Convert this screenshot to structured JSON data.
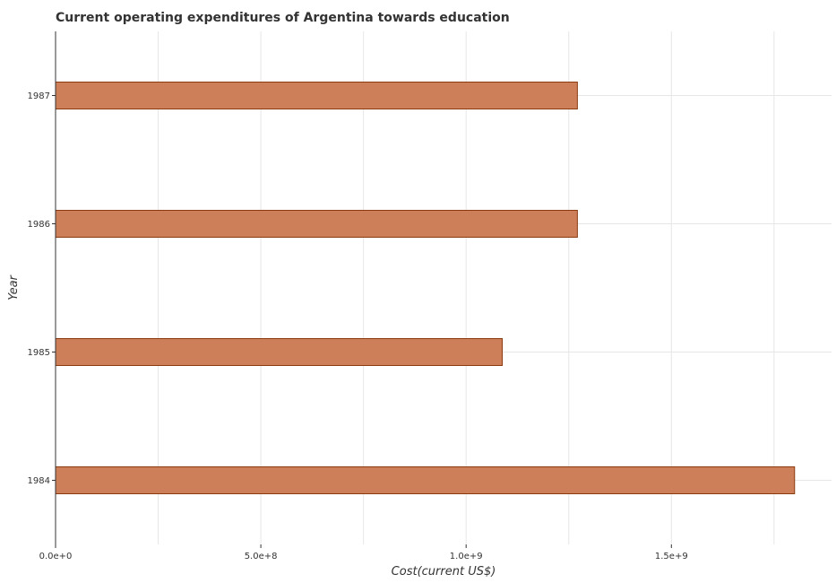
{
  "chart_data": {
    "type": "bar",
    "orientation": "horizontal",
    "title": "Current operating expenditures of Argentina towards education",
    "xlabel": "Cost(current US$)",
    "ylabel": "Year",
    "categories": [
      "1984",
      "1985",
      "1986",
      "1987"
    ],
    "values": [
      1800000000,
      1088000000,
      1271000000,
      1271000000
    ],
    "xlim": [
      0,
      1890000000
    ],
    "xticks": [
      0,
      500000000,
      1000000000,
      1500000000
    ],
    "xtick_labels": [
      "0.0e+0",
      "5.0e+8",
      "1.0e+9",
      "1.5e+9"
    ],
    "grid": true,
    "colors": {
      "bar_fill": "#cd7f5a",
      "bar_edge": "#8b3a0e"
    }
  }
}
